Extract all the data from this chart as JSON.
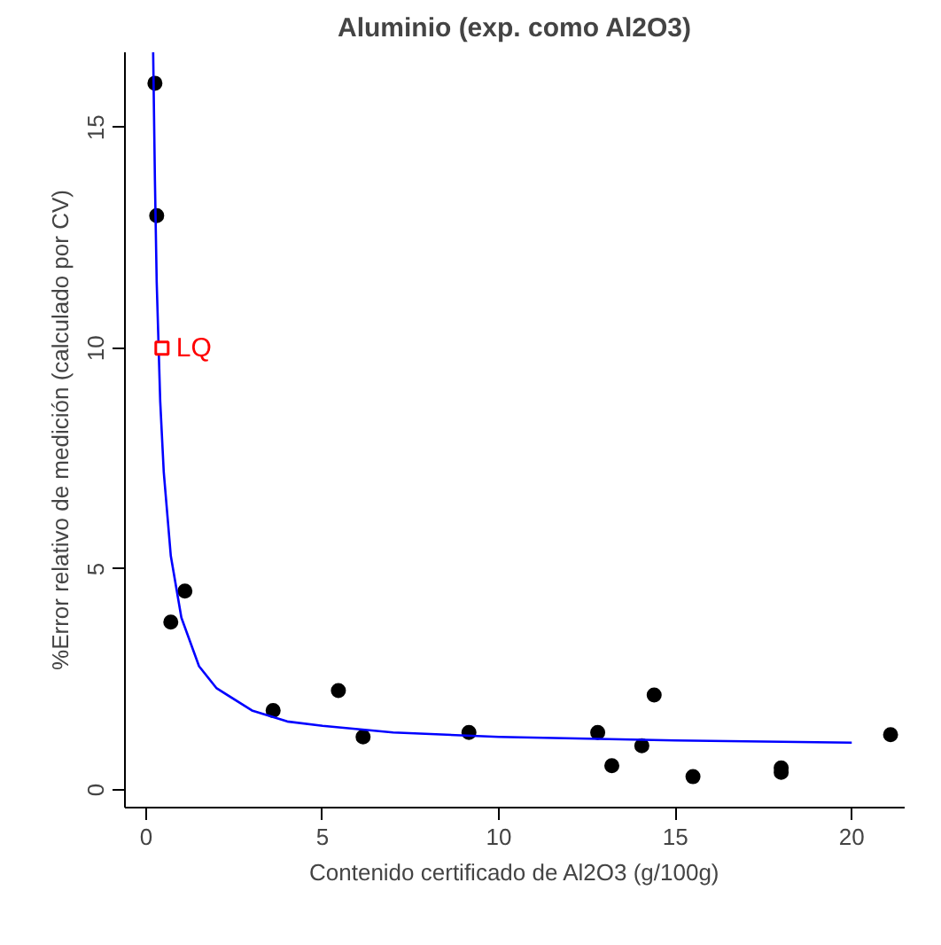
{
  "chart_data": {
    "type": "scatter",
    "title": "Aluminio (exp. como Al2O3)",
    "xlabel": "Contenido certificado de Al2O3 (g/100g)",
    "ylabel": "%Error relativo de medición (calculado por CV)",
    "xlim": [
      -0.6,
      21.5
    ],
    "ylim": [
      -0.4,
      16.7
    ],
    "xticks": [
      0,
      5,
      10,
      15,
      20
    ],
    "yticks": [
      0,
      5,
      10,
      15
    ],
    "grid": false,
    "series": [
      {
        "marker": "circle",
        "color": "#000000",
        "x": [
          0.25,
          0.3,
          0.7,
          1.1,
          3.6,
          5.45,
          6.15,
          9.15,
          12.8,
          13.2,
          14.05,
          14.4,
          15.5,
          18.0,
          18.0,
          21.1
        ],
        "values": [
          16.0,
          13.0,
          3.8,
          4.5,
          1.8,
          2.25,
          1.2,
          1.3,
          1.3,
          0.55,
          1.0,
          2.15,
          0.3,
          0.5,
          0.4,
          1.25
        ]
      },
      {
        "type": "line",
        "color": "#0000ff",
        "x": [
          0.2,
          0.25,
          0.3,
          0.4,
          0.5,
          0.7,
          1,
          1.5,
          2,
          3,
          4,
          5,
          7,
          10,
          15,
          20
        ],
        "values": [
          16.7,
          13.8,
          11.5,
          8.8,
          7.2,
          5.3,
          3.9,
          2.8,
          2.3,
          1.8,
          1.55,
          1.45,
          1.3,
          1.2,
          1.12,
          1.07
        ]
      },
      {
        "marker": "square",
        "color": "#ff0000",
        "x": [
          0.45
        ],
        "values": [
          10.0
        ]
      }
    ],
    "annotations": [
      {
        "text": "LQ",
        "x": 0.45,
        "y": 10.0
      }
    ]
  }
}
